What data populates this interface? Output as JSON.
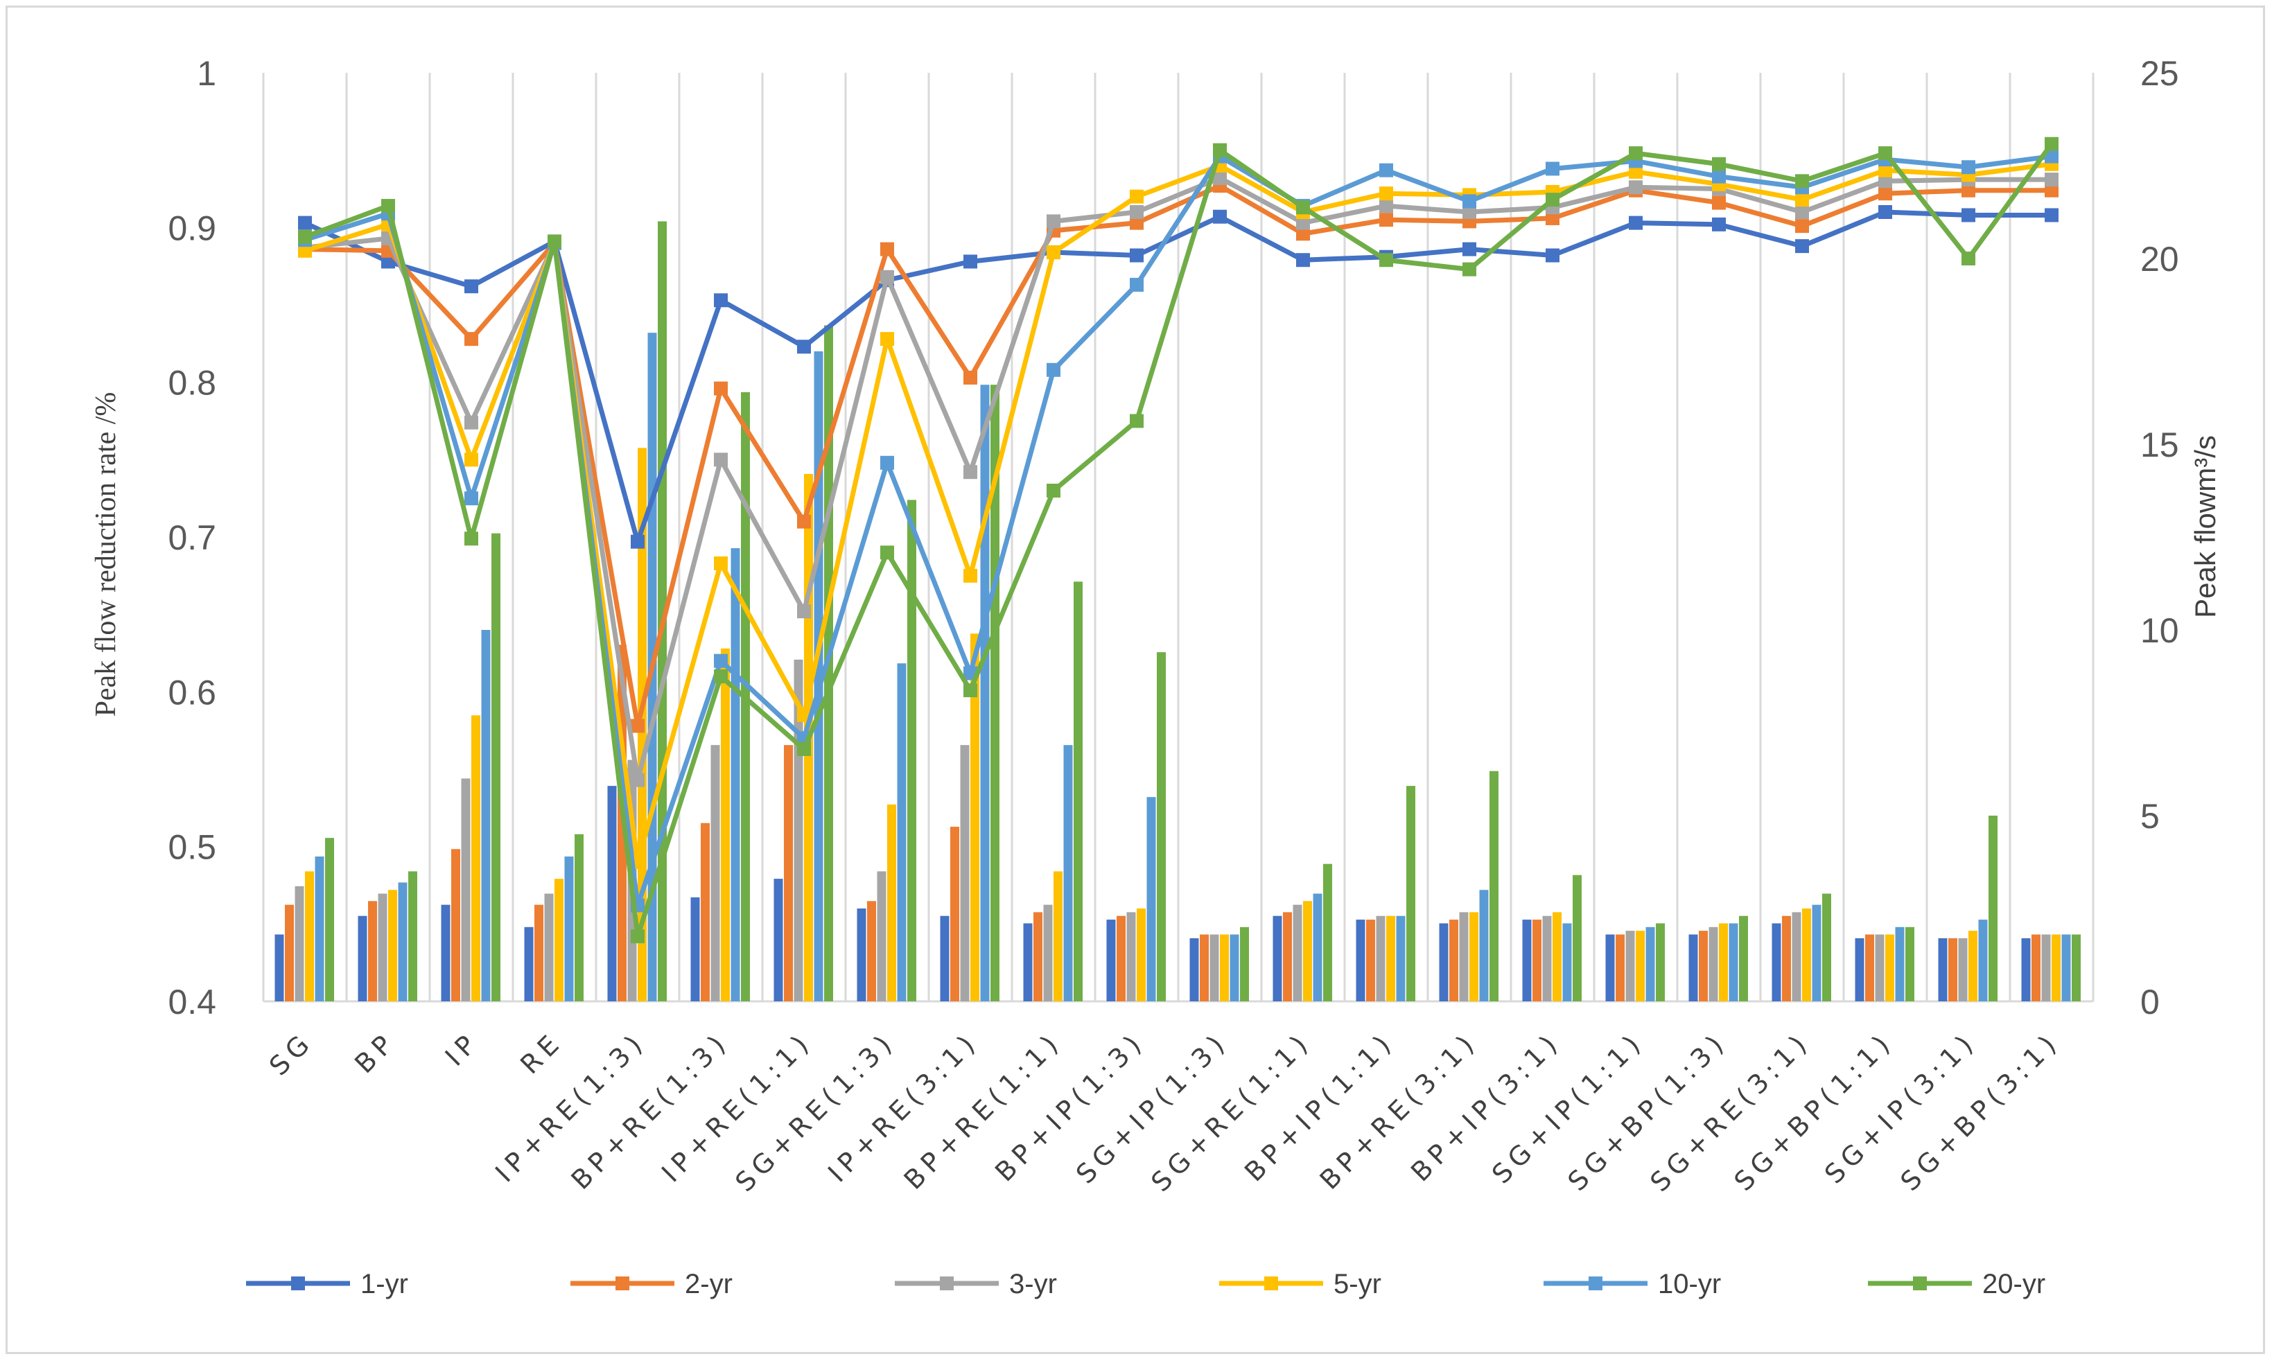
{
  "chart_data": {
    "type": "bar+line",
    "title": "",
    "categories": [
      "SG",
      "BP",
      "IP",
      "RE",
      "IP+RE(1:3)",
      "BP+RE(1:3)",
      "IP+RE(1:1)",
      "SG+RE(1:3)",
      "IP+RE(3:1)",
      "BP+RE(1:1)",
      "BP+IP(1:3)",
      "SG+IP(1:3)",
      "SG+RE(1:1)",
      "BP+IP(1:1)",
      "BP+RE(3:1)",
      "BP+IP(3:1)",
      "SG+IP(1:1)",
      "SG+BP(1:3)",
      "SG+RE(3:1)",
      "SG+BP(1:1)",
      "SG+IP(3:1)",
      "SG+BP(3:1)"
    ],
    "y_left": {
      "label": "Peak flow reduction rate /%",
      "ylim": [
        0.4,
        1.0
      ],
      "ticks": [
        "0.4",
        "0.5",
        "0.6",
        "0.7",
        "0.8",
        "0.9",
        "1"
      ]
    },
    "y_right": {
      "label": "Peak flowm³/s",
      "ylim": [
        0,
        25
      ],
      "ticks": [
        "0",
        "5",
        "10",
        "15",
        "20",
        "25"
      ]
    },
    "series": [
      {
        "name": "1-yr",
        "color": "#4472C4",
        "line": [
          0.903,
          0.878,
          0.862,
          0.891,
          0.697,
          0.853,
          0.823,
          0.866,
          0.878,
          0.884,
          0.882,
          0.907,
          0.879,
          0.881,
          0.886,
          0.882,
          0.903,
          0.902,
          0.888,
          0.91,
          0.908,
          0.908
        ],
        "bars": [
          1.8,
          2.3,
          2.6,
          2.0,
          5.8,
          2.8,
          3.3,
          2.5,
          2.3,
          2.1,
          2.2,
          1.7,
          2.3,
          2.2,
          2.1,
          2.2,
          1.8,
          1.8,
          2.1,
          1.7,
          1.7,
          1.7
        ]
      },
      {
        "name": "2-yr",
        "color": "#ED7D31",
        "line": [
          0.886,
          0.885,
          0.828,
          0.89,
          0.578,
          0.796,
          0.71,
          0.886,
          0.803,
          0.898,
          0.903,
          0.927,
          0.896,
          0.905,
          0.904,
          0.906,
          0.924,
          0.916,
          0.901,
          0.922,
          0.924,
          0.924
        ],
        "bars": [
          2.6,
          2.7,
          4.1,
          2.6,
          9.6,
          4.8,
          6.9,
          2.7,
          4.7,
          2.4,
          2.3,
          1.8,
          2.4,
          2.2,
          2.2,
          2.2,
          1.8,
          1.9,
          2.3,
          1.8,
          1.7,
          1.8
        ]
      },
      {
        "name": "3-yr",
        "color": "#A5A5A5",
        "line": [
          0.887,
          0.893,
          0.774,
          0.89,
          0.543,
          0.75,
          0.652,
          0.868,
          0.742,
          0.904,
          0.91,
          0.932,
          0.903,
          0.914,
          0.91,
          0.913,
          0.926,
          0.925,
          0.91,
          0.93,
          0.931,
          0.931
        ],
        "bars": [
          3.1,
          2.9,
          6.0,
          2.9,
          6.5,
          6.9,
          9.2,
          3.5,
          6.9,
          2.6,
          2.4,
          1.8,
          2.6,
          2.3,
          2.4,
          2.3,
          1.9,
          2.0,
          2.4,
          1.8,
          1.7,
          1.8
        ]
      },
      {
        "name": "5-yr",
        "color": "#FFC000",
        "line": [
          0.885,
          0.902,
          0.75,
          0.89,
          0.49,
          0.683,
          0.585,
          0.828,
          0.675,
          0.884,
          0.92,
          0.94,
          0.91,
          0.922,
          0.921,
          0.923,
          0.936,
          0.928,
          0.918,
          0.937,
          0.934,
          0.941
        ],
        "bars": [
          3.5,
          3.0,
          7.7,
          3.3,
          14.9,
          9.5,
          14.2,
          5.3,
          9.9,
          3.5,
          2.5,
          1.8,
          2.7,
          2.3,
          2.4,
          2.4,
          1.9,
          2.1,
          2.5,
          1.8,
          1.9,
          1.8
        ]
      },
      {
        "name": "10-yr",
        "color": "#5B9BD5",
        "line": [
          0.892,
          0.909,
          0.725,
          0.89,
          0.462,
          0.62,
          0.57,
          0.748,
          0.612,
          0.808,
          0.863,
          0.946,
          0.914,
          0.937,
          0.917,
          0.938,
          0.943,
          0.933,
          0.926,
          0.944,
          0.939,
          0.946
        ],
        "bars": [
          3.9,
          3.2,
          10.0,
          3.9,
          18.0,
          12.2,
          17.5,
          9.1,
          16.6,
          6.9,
          5.5,
          1.8,
          2.9,
          2.3,
          3.0,
          2.1,
          2.0,
          2.1,
          2.6,
          2.0,
          2.2,
          1.8
        ]
      },
      {
        "name": "20-yr",
        "color": "#70AD47",
        "line": [
          0.894,
          0.914,
          0.699,
          0.891,
          0.442,
          0.61,
          0.563,
          0.69,
          0.601,
          0.73,
          0.775,
          0.95,
          0.913,
          0.879,
          0.873,
          0.918,
          0.948,
          0.941,
          0.93,
          0.948,
          0.88,
          0.954
        ],
        "bars": [
          4.4,
          3.5,
          12.6,
          4.5,
          21.0,
          16.4,
          18.2,
          13.5,
          16.6,
          11.3,
          9.4,
          2.0,
          3.7,
          5.8,
          6.2,
          3.4,
          2.1,
          2.3,
          2.9,
          2.0,
          5.0,
          1.8
        ]
      }
    ],
    "legend_position": "bottom",
    "grid": "vertical category gridlines"
  }
}
